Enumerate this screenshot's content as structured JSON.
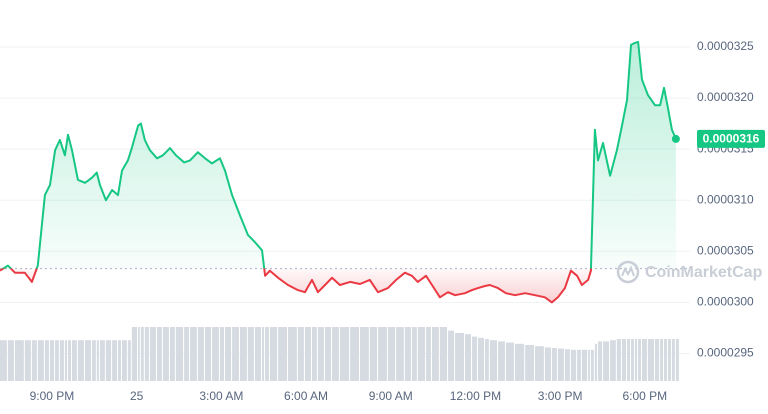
{
  "chart_data": {
    "type": "line",
    "watermark": "CoinMarketCap",
    "xlim": [
      -1.84,
      22.6
    ],
    "xticks": [
      {
        "value": 0,
        "label": "9:00 PM"
      },
      {
        "value": 3,
        "label": "25"
      },
      {
        "value": 6,
        "label": "3:00 AM"
      },
      {
        "value": 9,
        "label": "6:00 AM"
      },
      {
        "value": 12,
        "label": "9:00 AM"
      },
      {
        "value": 15,
        "label": "12:00 PM"
      },
      {
        "value": 18,
        "label": "3:00 PM"
      },
      {
        "value": 21,
        "label": "6:00 PM"
      }
    ],
    "ylim": [
      2.924e-05,
      3.296e-05
    ],
    "yticks": [
      2.95e-05,
      {
        "value": 3e-05,
        "label": "0.0000300"
      },
      3.05e-05,
      {
        "value": 3.1e-05,
        "label": "0.0000310"
      },
      3.15e-05,
      {
        "value": 3.2e-05,
        "label": "0.0000320"
      },
      3.25e-05
    ],
    "grid": true,
    "baseline": 3.033e-05,
    "up_color": "#16c784",
    "down_color": "#ea3943",
    "x": [
      -1.84,
      -1.56,
      -1.31,
      -0.96,
      -0.71,
      -0.5,
      -0.25,
      -0.07,
      0.11,
      0.28,
      0.46,
      0.57,
      0.71,
      0.92,
      1.17,
      1.42,
      1.59,
      1.7,
      1.91,
      2.13,
      2.34,
      2.48,
      2.69,
      2.83,
      3.05,
      3.15,
      3.29,
      3.47,
      3.72,
      3.93,
      4.18,
      4.39,
      4.68,
      4.89,
      5.17,
      5.42,
      5.67,
      5.95,
      6.13,
      6.38,
      6.66,
      6.94,
      7.19,
      7.44,
      7.55,
      7.72,
      8.01,
      8.36,
      8.71,
      8.96,
      9.21,
      9.42,
      9.67,
      9.92,
      10.2,
      10.56,
      10.91,
      11.26,
      11.55,
      11.9,
      12.19,
      12.5,
      12.75,
      12.96,
      13.25,
      13.46,
      13.74,
      14.03,
      14.28,
      14.63,
      14.88,
      15.09,
      15.34,
      15.51,
      15.8,
      16.08,
      16.4,
      16.76,
      17.11,
      17.46,
      17.71,
      17.92,
      18.17,
      18.38,
      18.6,
      18.77,
      18.99,
      19.09,
      19.23,
      19.34,
      19.52,
      19.77,
      20.01,
      20.19,
      20.37,
      20.51,
      20.65,
      20.76,
      20.9,
      21.11,
      21.36,
      21.54,
      21.68,
      21.82,
      21.96,
      22.1
    ],
    "series": [
      {
        "values": [
          3.031e-05,
          3.036e-05,
          3.029e-05,
          3.029e-05,
          3.02e-05,
          3.036e-05,
          3.105e-05,
          3.115e-05,
          3.149e-05,
          3.159e-05,
          3.144e-05,
          3.164e-05,
          3.149e-05,
          3.12e-05,
          3.117e-05,
          3.122e-05,
          3.127e-05,
          3.115e-05,
          3.1e-05,
          3.11e-05,
          3.105e-05,
          3.129e-05,
          3.139e-05,
          3.151e-05,
          3.173e-05,
          3.175e-05,
          3.159e-05,
          3.149e-05,
          3.141e-05,
          3.144e-05,
          3.151e-05,
          3.144e-05,
          3.137e-05,
          3.139e-05,
          3.147e-05,
          3.141e-05,
          3.136e-05,
          3.141e-05,
          3.129e-05,
          3.105e-05,
          3.085e-05,
          3.066e-05,
          3.059e-05,
          3.051e-05,
          3.026e-05,
          3.031e-05,
          3.024e-05,
          3.017e-05,
          3.012e-05,
          3.01e-05,
          3.022e-05,
          3.01e-05,
          3.017e-05,
          3.024e-05,
          3.017e-05,
          3.02e-05,
          3.018e-05,
          3.022e-05,
          3.01e-05,
          3.014e-05,
          3.022e-05,
          3.029e-05,
          3.026e-05,
          3.02e-05,
          3.026e-05,
          3.017e-05,
          3.005e-05,
          3.01e-05,
          3.007e-05,
          3.009e-05,
          3.012e-05,
          3.014e-05,
          3.016e-05,
          3.017e-05,
          3.014e-05,
          3.009e-05,
          3.007e-05,
          3.009e-05,
          3.007e-05,
          3.005e-05,
          3e-05,
          3.005e-05,
          3.014e-05,
          3.031e-05,
          3.026e-05,
          3.017e-05,
          3.022e-05,
          3.031e-05,
          3.169e-05,
          3.139e-05,
          3.156e-05,
          3.124e-05,
          3.149e-05,
          3.173e-05,
          3.198e-05,
          3.252e-05,
          3.254e-05,
          3.255e-05,
          3.218e-05,
          3.203e-05,
          3.193e-05,
          3.193e-05,
          3.21e-05,
          3.19e-05,
          3.169e-05,
          3.16e-05
        ]
      }
    ],
    "volume_color": "#d6dbe2",
    "volume_ylim": [
      0,
      100
    ],
    "volume": [
      68,
      68,
      68,
      68,
      68,
      68,
      68,
      68,
      68,
      68,
      68,
      68,
      68,
      68,
      68,
      68,
      68,
      68,
      68,
      68,
      68,
      68,
      68,
      90,
      90,
      90,
      90,
      90,
      90,
      90,
      90,
      90,
      90,
      90,
      90,
      90,
      90,
      90,
      90,
      90,
      90,
      90,
      90,
      90,
      90,
      90,
      90,
      90,
      90,
      90,
      90,
      90,
      90,
      90,
      90,
      90,
      90,
      90,
      90,
      90,
      90,
      90,
      90,
      90,
      90,
      90,
      90,
      84,
      80,
      78,
      74,
      72,
      70,
      68,
      66,
      64,
      62,
      60,
      58,
      56,
      55,
      54,
      53,
      52,
      52,
      52,
      52,
      52,
      62,
      66,
      66,
      68,
      70,
      70,
      70,
      70,
      70,
      70,
      70,
      70,
      70,
      70,
      70,
      70,
      70,
      70
    ]
  }
}
